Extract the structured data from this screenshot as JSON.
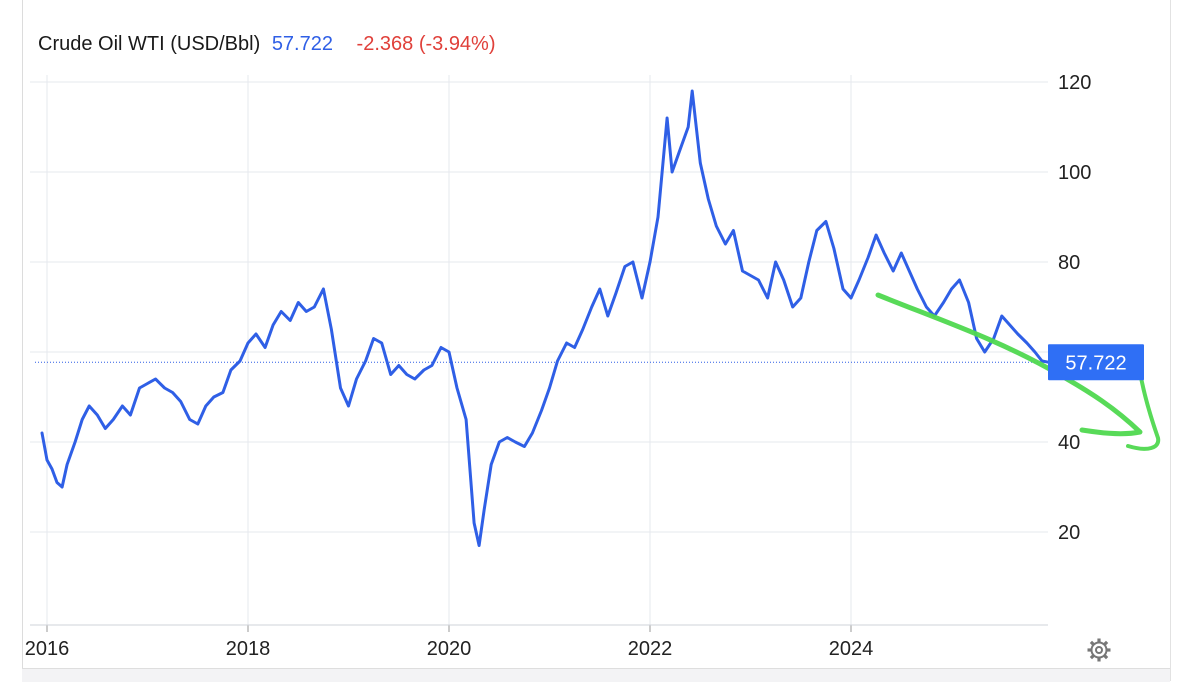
{
  "header": {
    "title": "Crude Oil WTI (USD/Bbl)",
    "price": "57.722",
    "change": "-2.368 (-3.94%)"
  },
  "price_tag": "57.722",
  "settings_icon": "gear-icon",
  "colors": {
    "line": "#2f5fe6",
    "price": "#2f5fe6",
    "change": "#e0403a",
    "annotation": "#4fd84f",
    "grid": "#e6e8ee"
  },
  "chart_data": {
    "type": "line",
    "title": "Crude Oil WTI (USD/Bbl)",
    "xlabel": "",
    "ylabel": "",
    "y_axis_side": "right",
    "grid": true,
    "ylim": [
      0,
      130
    ],
    "xlim": [
      2015.95,
      2025.97
    ],
    "x_ticks": [
      "2016",
      "2018",
      "2020",
      "2022",
      "2024"
    ],
    "y_ticks": [
      "20",
      "40",
      "60",
      "80",
      "100",
      "120"
    ],
    "last_value": 57.722,
    "series": [
      {
        "values": [
          [
            2015.95,
            42
          ],
          [
            2016.0,
            36
          ],
          [
            2016.05,
            34
          ],
          [
            2016.1,
            31
          ],
          [
            2016.15,
            30
          ],
          [
            2016.2,
            35
          ],
          [
            2016.28,
            40
          ],
          [
            2016.35,
            45
          ],
          [
            2016.42,
            48
          ],
          [
            2016.5,
            46
          ],
          [
            2016.58,
            43
          ],
          [
            2016.66,
            45
          ],
          [
            2016.75,
            48
          ],
          [
            2016.83,
            46
          ],
          [
            2016.92,
            52
          ],
          [
            2017.0,
            53
          ],
          [
            2017.08,
            54
          ],
          [
            2017.17,
            52
          ],
          [
            2017.25,
            51
          ],
          [
            2017.33,
            49
          ],
          [
            2017.42,
            45
          ],
          [
            2017.5,
            44
          ],
          [
            2017.58,
            48
          ],
          [
            2017.66,
            50
          ],
          [
            2017.75,
            51
          ],
          [
            2017.83,
            56
          ],
          [
            2017.92,
            58
          ],
          [
            2018.0,
            62
          ],
          [
            2018.08,
            64
          ],
          [
            2018.17,
            61
          ],
          [
            2018.25,
            66
          ],
          [
            2018.33,
            69
          ],
          [
            2018.42,
            67
          ],
          [
            2018.5,
            71
          ],
          [
            2018.58,
            69
          ],
          [
            2018.66,
            70
          ],
          [
            2018.75,
            74
          ],
          [
            2018.83,
            65
          ],
          [
            2018.92,
            52
          ],
          [
            2019.0,
            48
          ],
          [
            2019.08,
            54
          ],
          [
            2019.17,
            58
          ],
          [
            2019.25,
            63
          ],
          [
            2019.33,
            62
          ],
          [
            2019.42,
            55
          ],
          [
            2019.5,
            57
          ],
          [
            2019.58,
            55
          ],
          [
            2019.66,
            54
          ],
          [
            2019.75,
            56
          ],
          [
            2019.83,
            57
          ],
          [
            2019.92,
            61
          ],
          [
            2020.0,
            60
          ],
          [
            2020.08,
            52
          ],
          [
            2020.17,
            45
          ],
          [
            2020.25,
            22
          ],
          [
            2020.3,
            17
          ],
          [
            2020.35,
            25
          ],
          [
            2020.42,
            35
          ],
          [
            2020.5,
            40
          ],
          [
            2020.58,
            41
          ],
          [
            2020.66,
            40
          ],
          [
            2020.75,
            39
          ],
          [
            2020.83,
            42
          ],
          [
            2020.92,
            47
          ],
          [
            2021.0,
            52
          ],
          [
            2021.08,
            58
          ],
          [
            2021.17,
            62
          ],
          [
            2021.25,
            61
          ],
          [
            2021.33,
            65
          ],
          [
            2021.42,
            70
          ],
          [
            2021.5,
            74
          ],
          [
            2021.58,
            68
          ],
          [
            2021.66,
            73
          ],
          [
            2021.75,
            79
          ],
          [
            2021.83,
            80
          ],
          [
            2021.92,
            72
          ],
          [
            2022.0,
            80
          ],
          [
            2022.08,
            90
          ],
          [
            2022.17,
            112
          ],
          [
            2022.22,
            100
          ],
          [
            2022.3,
            105
          ],
          [
            2022.38,
            110
          ],
          [
            2022.42,
            118
          ],
          [
            2022.5,
            102
          ],
          [
            2022.58,
            94
          ],
          [
            2022.66,
            88
          ],
          [
            2022.75,
            84
          ],
          [
            2022.83,
            87
          ],
          [
            2022.92,
            78
          ],
          [
            2023.0,
            77
          ],
          [
            2023.08,
            76
          ],
          [
            2023.17,
            72
          ],
          [
            2023.25,
            80
          ],
          [
            2023.33,
            76
          ],
          [
            2023.42,
            70
          ],
          [
            2023.5,
            72
          ],
          [
            2023.58,
            80
          ],
          [
            2023.66,
            87
          ],
          [
            2023.75,
            89
          ],
          [
            2023.83,
            83
          ],
          [
            2023.92,
            74
          ],
          [
            2024.0,
            72
          ],
          [
            2024.08,
            76
          ],
          [
            2024.17,
            81
          ],
          [
            2024.25,
            86
          ],
          [
            2024.33,
            82
          ],
          [
            2024.42,
            78
          ],
          [
            2024.5,
            82
          ],
          [
            2024.58,
            78
          ],
          [
            2024.66,
            74
          ],
          [
            2024.75,
            70
          ],
          [
            2024.83,
            68
          ],
          [
            2024.92,
            71
          ],
          [
            2025.0,
            74
          ],
          [
            2025.08,
            76
          ],
          [
            2025.17,
            71
          ],
          [
            2025.25,
            63
          ],
          [
            2025.33,
            60
          ],
          [
            2025.42,
            63
          ],
          [
            2025.5,
            68
          ],
          [
            2025.58,
            66
          ],
          [
            2025.66,
            64
          ],
          [
            2025.75,
            62
          ],
          [
            2025.83,
            60
          ],
          [
            2025.9,
            58
          ],
          [
            2025.97,
            57.722
          ]
        ]
      }
    ]
  }
}
